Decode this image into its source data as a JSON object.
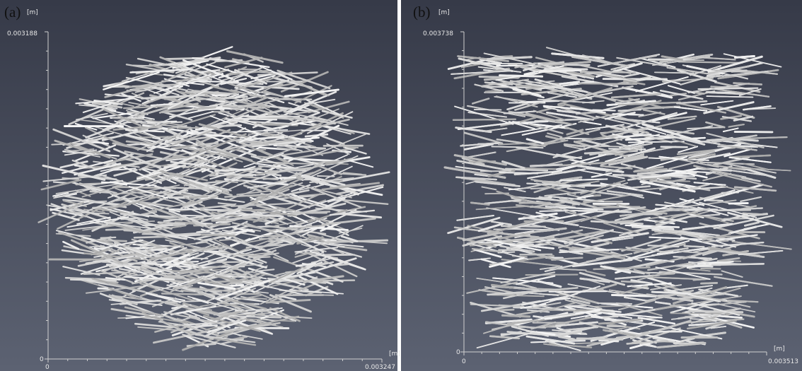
{
  "panels": [
    {
      "label": "(a)",
      "y_axis": {
        "unit": "[m]",
        "max": "0.003188",
        "min": "0"
      },
      "x_axis": {
        "min": "0",
        "max": "0.003247",
        "unit": "[m]"
      }
    },
    {
      "label": "(b)",
      "y_axis": {
        "unit": "[m]",
        "max": "0.003738",
        "min": "0"
      },
      "x_axis": {
        "min": "0",
        "max": "0.003513",
        "unit": "[m]"
      }
    }
  ]
}
